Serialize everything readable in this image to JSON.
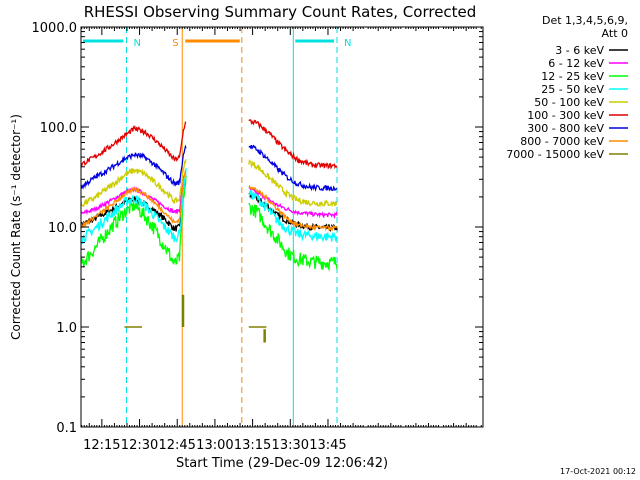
{
  "chart_data": {
    "type": "line",
    "title": "RHESSI Observing Summary Count Rates, Corrected",
    "xlabel": "Start Time (29-Dec-09 12:06:42)",
    "ylabel": "Corrected Count Rate (s⁻¹ detector⁻¹)",
    "yscale": "log",
    "ylim": [
      0.1,
      1000
    ],
    "xlim_minutes_after_12h": [
      6.7,
      166.7
    ],
    "y_ticks": [
      {
        "value": 1000,
        "label": "1000.0"
      },
      {
        "value": 100,
        "label": "100.0"
      },
      {
        "value": 10,
        "label": "10.0"
      },
      {
        "value": 1,
        "label": "1.0"
      },
      {
        "value": 0.1,
        "label": "0.1"
      }
    ],
    "x_ticks": [
      {
        "value": 15,
        "label": "12:15"
      },
      {
        "value": 30,
        "label": "12:30"
      },
      {
        "value": 45,
        "label": "12:45"
      },
      {
        "value": 60,
        "label": "13:00"
      },
      {
        "value": 75,
        "label": "13:15"
      },
      {
        "value": 90,
        "label": "13:30"
      },
      {
        "value": 105,
        "label": "13:45"
      }
    ],
    "legend": {
      "header_lines": [
        "Det 1,3,4,5,6,9,",
        "Att 0"
      ],
      "placement": "right, outside plot"
    },
    "footer": "17-Oct-2021 00:12",
    "intervals": [
      {
        "label": "N",
        "start": 6.7,
        "end": 24.8,
        "color": "#00e0e0"
      },
      {
        "label": "N",
        "start": 91.2,
        "end": 108.6,
        "color": "#00e0e0"
      },
      {
        "label": "S",
        "start": 47.0,
        "end": 70.7,
        "color": "#ff8c00"
      }
    ],
    "gap": [
      48.5,
      73.5
    ],
    "series": [
      {
        "name": "3 - 6 keV",
        "color": "#000000",
        "points_before_gap": [
          [
            6.7,
            10.5
          ],
          [
            12,
            12
          ],
          [
            18,
            14.5
          ],
          [
            24,
            17.5
          ],
          [
            28,
            19
          ],
          [
            32,
            17
          ],
          [
            36,
            14.5
          ],
          [
            40,
            12
          ],
          [
            44,
            9.5
          ],
          [
            46,
            10
          ],
          [
            47.5,
            25
          ],
          [
            48.5,
            28
          ]
        ],
        "points_after_gap": [
          [
            73.5,
            21
          ],
          [
            77,
            19
          ],
          [
            81,
            16
          ],
          [
            85,
            13
          ],
          [
            89,
            11.5
          ],
          [
            93,
            10.5
          ],
          [
            98,
            10
          ],
          [
            103,
            9.8
          ],
          [
            108.6,
            9.8
          ]
        ],
        "noise": 0.03
      },
      {
        "name": "6 - 12 keV",
        "color": "#ff00ff",
        "points_before_gap": [
          [
            6.7,
            13.5
          ],
          [
            12,
            15
          ],
          [
            18,
            18
          ],
          [
            24,
            22
          ],
          [
            28,
            24
          ],
          [
            32,
            21.5
          ],
          [
            36,
            18.5
          ],
          [
            40,
            16
          ],
          [
            44,
            14
          ],
          [
            46,
            15
          ],
          [
            47.5,
            32
          ],
          [
            48.5,
            35
          ]
        ],
        "points_after_gap": [
          [
            73.5,
            24
          ],
          [
            77,
            22
          ],
          [
            81,
            19
          ],
          [
            85,
            16.5
          ],
          [
            89,
            15
          ],
          [
            93,
            14
          ],
          [
            98,
            13.5
          ],
          [
            103,
            13.2
          ],
          [
            108.6,
            13.2
          ]
        ],
        "noise": 0.02
      },
      {
        "name": "12 - 25 keV",
        "color": "#00ff00",
        "points_before_gap": [
          [
            6.7,
            4.2
          ],
          [
            12,
            6
          ],
          [
            18,
            9.5
          ],
          [
            24,
            14
          ],
          [
            28,
            16.5
          ],
          [
            32,
            13
          ],
          [
            36,
            9.5
          ],
          [
            40,
            6.5
          ],
          [
            44,
            4.2
          ],
          [
            46,
            5
          ],
          [
            47.5,
            20
          ],
          [
            48.5,
            30
          ]
        ],
        "points_after_gap": [
          [
            73.5,
            16
          ],
          [
            77,
            14
          ],
          [
            81,
            10
          ],
          [
            85,
            7.5
          ],
          [
            89,
            5.5
          ],
          [
            93,
            4.8
          ],
          [
            98,
            4.5
          ],
          [
            103,
            4.4
          ],
          [
            108.6,
            4.4
          ]
        ],
        "noise": 0.07
      },
      {
        "name": "25 - 50 keV",
        "color": "#00ffff",
        "points_before_gap": [
          [
            6.7,
            7.5
          ],
          [
            12,
            9.5
          ],
          [
            18,
            13
          ],
          [
            24,
            17.5
          ],
          [
            28,
            19.5
          ],
          [
            32,
            16.5
          ],
          [
            36,
            13
          ],
          [
            40,
            10
          ],
          [
            44,
            7.8
          ],
          [
            46,
            8.5
          ],
          [
            47.5,
            25
          ],
          [
            48.5,
            35
          ]
        ],
        "points_after_gap": [
          [
            73.5,
            22
          ],
          [
            77,
            19.5
          ],
          [
            81,
            15
          ],
          [
            85,
            11.5
          ],
          [
            89,
            9.5
          ],
          [
            93,
            8.5
          ],
          [
            98,
            8.2
          ],
          [
            103,
            8
          ],
          [
            108.6,
            8
          ]
        ],
        "noise": 0.05
      },
      {
        "name": "50 - 100 keV",
        "color": "#cccc00",
        "points_before_gap": [
          [
            6.7,
            16.5
          ],
          [
            12,
            19.5
          ],
          [
            18,
            25
          ],
          [
            24,
            33
          ],
          [
            28,
            37
          ],
          [
            32,
            34
          ],
          [
            36,
            28
          ],
          [
            40,
            23
          ],
          [
            44,
            18
          ],
          [
            46,
            19
          ],
          [
            47.5,
            40
          ],
          [
            48.5,
            45
          ]
        ],
        "points_after_gap": [
          [
            73.5,
            45
          ],
          [
            77,
            40
          ],
          [
            81,
            32
          ],
          [
            85,
            26
          ],
          [
            89,
            21
          ],
          [
            93,
            18.5
          ],
          [
            98,
            17.5
          ],
          [
            103,
            17.2
          ],
          [
            108.6,
            17.2
          ]
        ],
        "noise": 0.03
      },
      {
        "name": "100 - 300 keV",
        "color": "#e00000",
        "points_before_gap": [
          [
            6.7,
            42
          ],
          [
            12,
            50
          ],
          [
            18,
            63
          ],
          [
            24,
            82
          ],
          [
            28,
            96
          ],
          [
            32,
            90
          ],
          [
            36,
            75
          ],
          [
            40,
            60
          ],
          [
            44,
            47
          ],
          [
            46,
            50
          ],
          [
            47.5,
            95
          ],
          [
            48.5,
            115
          ]
        ],
        "points_after_gap": [
          [
            73.5,
            115
          ],
          [
            77,
            108
          ],
          [
            81,
            90
          ],
          [
            85,
            70
          ],
          [
            89,
            56
          ],
          [
            93,
            47
          ],
          [
            98,
            42
          ],
          [
            103,
            41
          ],
          [
            108.6,
            41
          ]
        ],
        "noise": 0.025
      },
      {
        "name": "300 - 800 keV",
        "color": "#0000e0",
        "points_before_gap": [
          [
            6.7,
            25
          ],
          [
            12,
            31
          ],
          [
            18,
            38
          ],
          [
            24,
            48
          ],
          [
            28,
            53
          ],
          [
            32,
            50
          ],
          [
            36,
            42
          ],
          [
            40,
            34
          ],
          [
            44,
            27
          ],
          [
            46,
            28
          ],
          [
            47.5,
            55
          ],
          [
            48.5,
            65
          ]
        ],
        "points_after_gap": [
          [
            73.5,
            65
          ],
          [
            77,
            59
          ],
          [
            81,
            48
          ],
          [
            85,
            38
          ],
          [
            89,
            31
          ],
          [
            93,
            27
          ],
          [
            98,
            25
          ],
          [
            103,
            24.5
          ],
          [
            108.6,
            24.5
          ]
        ],
        "noise": 0.025
      },
      {
        "name": "800 - 7000 keV",
        "color": "#ff8c00",
        "points_before_gap": [
          [
            6.7,
            10
          ],
          [
            12,
            12.5
          ],
          [
            18,
            16
          ],
          [
            24,
            21
          ],
          [
            28,
            24
          ],
          [
            32,
            21.5
          ],
          [
            36,
            17.5
          ],
          [
            40,
            14
          ],
          [
            44,
            11
          ],
          [
            46,
            12
          ],
          [
            47.5,
            30
          ],
          [
            48.5,
            38
          ]
        ],
        "points_after_gap": [
          [
            73.5,
            26
          ],
          [
            77,
            23
          ],
          [
            81,
            19
          ],
          [
            85,
            15
          ],
          [
            89,
            12
          ],
          [
            93,
            10.5
          ],
          [
            98,
            10
          ],
          [
            103,
            9.8
          ],
          [
            108.6,
            9.8
          ]
        ],
        "noise": 0.02
      },
      {
        "name": "7000 - 15000 keV",
        "color": "#808000",
        "points_before_gap": [
          [
            24,
            1.0
          ],
          [
            31,
            1.0
          ]
        ],
        "points_after_gap": [
          [
            73.5,
            1.0
          ],
          [
            80.5,
            1.0
          ]
        ],
        "spikes": [
          [
            47.2,
            1.0,
            2.1
          ],
          [
            79.7,
            0.7,
            0.95
          ]
        ],
        "noise": 0
      }
    ]
  }
}
